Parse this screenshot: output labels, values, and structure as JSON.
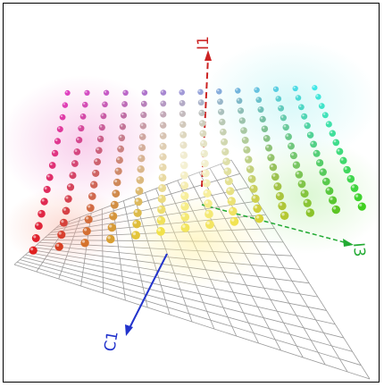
{
  "figure": {
    "axes": [
      {
        "id": "vertical",
        "label": "I1",
        "color": "#cc2222"
      },
      {
        "id": "right",
        "label": "I3",
        "color": "#22aa33"
      },
      {
        "id": "front",
        "label": "C1",
        "color": "#2233cc"
      }
    ],
    "colors": {
      "grid": "#9a9a9a",
      "frame": "#000000",
      "magenta": "#e040c0",
      "cyan": "#40e8e8",
      "green": "#40d020",
      "yellow": "#f0e040",
      "red": "#e02020",
      "white": "#ffffff"
    },
    "point_grid": {
      "columns": 14,
      "rows": 14
    }
  }
}
